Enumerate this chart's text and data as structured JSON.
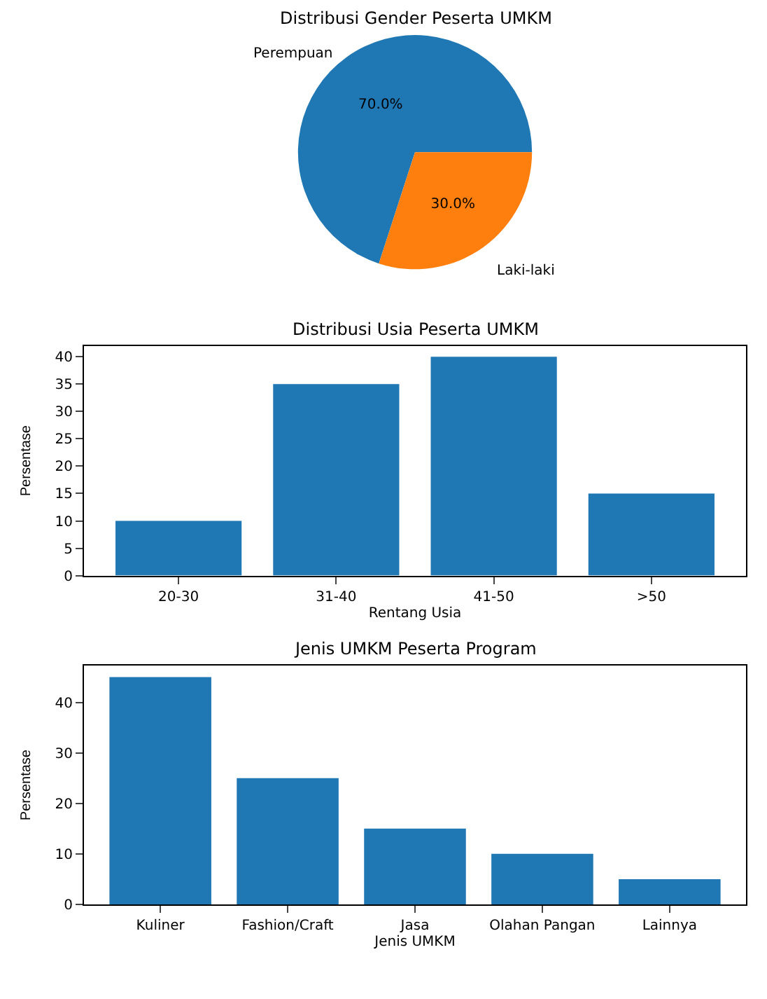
{
  "chart_data": [
    {
      "type": "pie",
      "title": "Distribusi Gender Peserta UMKM",
      "categories": [
        "Perempuan",
        "Laki-laki"
      ],
      "values": [
        70,
        30
      ],
      "colors": [
        "#1f77b4",
        "#ff7f0e"
      ],
      "value_labels": [
        "70.0%",
        "30.0%"
      ]
    },
    {
      "type": "bar",
      "title": "Distribusi Usia Peserta UMKM",
      "xlabel": "Rentang Usia",
      "ylabel": "Persentase",
      "categories": [
        "20-30",
        "31-40",
        "41-50",
        ">50"
      ],
      "values": [
        10,
        35,
        40,
        15
      ],
      "color": "#1f77b4",
      "ylim": [
        0,
        42
      ],
      "yticks": [
        0,
        5,
        10,
        15,
        20,
        25,
        30,
        35,
        40
      ]
    },
    {
      "type": "bar",
      "title": "Jenis UMKM Peserta Program",
      "xlabel": "Jenis UMKM",
      "ylabel": "Persentase",
      "categories": [
        "Kuliner",
        "Fashion/Craft",
        "Jasa",
        "Olahan Pangan",
        "Lainnya"
      ],
      "values": [
        45,
        25,
        15,
        10,
        5
      ],
      "color": "#1f77b4",
      "ylim": [
        0,
        47.25
      ],
      "yticks": [
        0,
        10,
        20,
        30,
        40
      ]
    }
  ]
}
